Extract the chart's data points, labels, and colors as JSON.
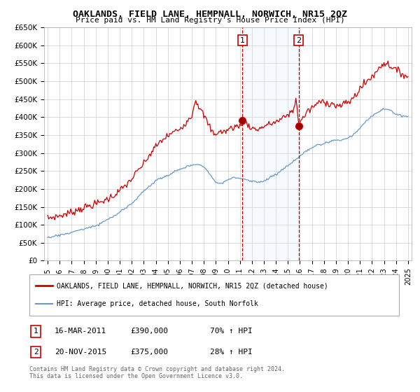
{
  "title": "OAKLANDS, FIELD LANE, HEMPNALL, NORWICH, NR15 2QZ",
  "subtitle": "Price paid vs. HM Land Registry's House Price Index (HPI)",
  "legend_line1": "OAKLANDS, FIELD LANE, HEMPNALL, NORWICH, NR15 2QZ (detached house)",
  "legend_line2": "HPI: Average price, detached house, South Norfolk",
  "sale1_label": "1",
  "sale1_date": "16-MAR-2011",
  "sale1_price": "£390,000",
  "sale1_hpi": "70% ↑ HPI",
  "sale1_x": 2011.21,
  "sale1_y": 390000,
  "sale2_label": "2",
  "sale2_date": "20-NOV-2015",
  "sale2_price": "£375,000",
  "sale2_hpi": "28% ↑ HPI",
  "sale2_x": 2015.89,
  "sale2_y": 375000,
  "footer": "Contains HM Land Registry data © Crown copyright and database right 2024.\nThis data is licensed under the Open Government Licence v3.0.",
  "ylim": [
    0,
    650000
  ],
  "xlim": [
    1994.7,
    2025.3
  ],
  "yticks": [
    0,
    50000,
    100000,
    150000,
    200000,
    250000,
    300000,
    350000,
    400000,
    450000,
    500000,
    550000,
    600000,
    650000
  ],
  "ytick_labels": [
    "£0",
    "£50K",
    "£100K",
    "£150K",
    "£200K",
    "£250K",
    "£300K",
    "£350K",
    "£400K",
    "£450K",
    "£500K",
    "£550K",
    "£600K",
    "£650K"
  ],
  "xticks": [
    1995,
    1996,
    1997,
    1998,
    1999,
    2000,
    2001,
    2002,
    2003,
    2004,
    2005,
    2006,
    2007,
    2008,
    2009,
    2010,
    2011,
    2012,
    2013,
    2014,
    2015,
    2016,
    2017,
    2018,
    2019,
    2020,
    2021,
    2022,
    2023,
    2024,
    2025
  ],
  "red_color": "#cc0000",
  "blue_color": "#6699cc",
  "shade_color": "#ddeeff",
  "grid_color": "#cccccc",
  "bg_color": "#ffffff"
}
